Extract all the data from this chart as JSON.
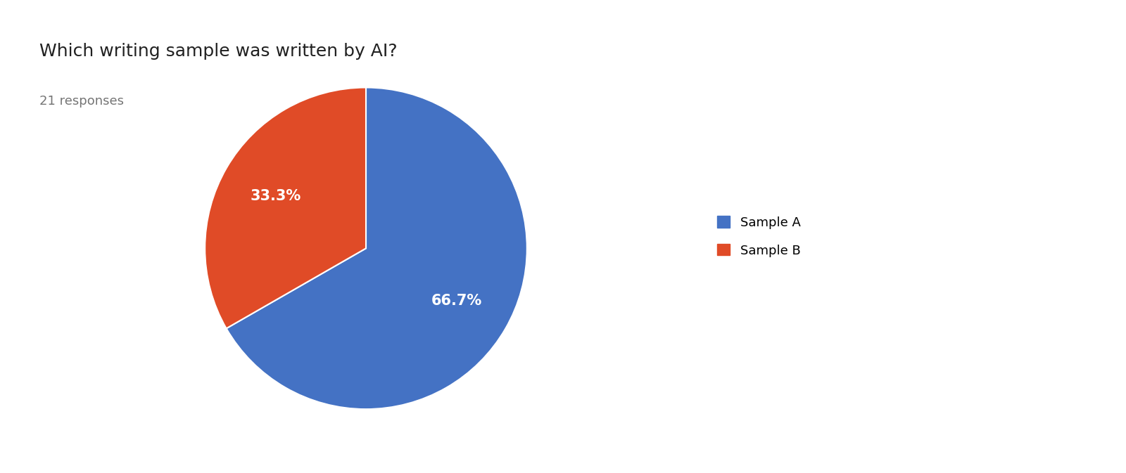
{
  "title": "Which writing sample was written by AI?",
  "subtitle": "21 responses",
  "labels": [
    "Sample A",
    "Sample B"
  ],
  "values": [
    66.7,
    33.3
  ],
  "colors": [
    "#4472C4",
    "#E04B27"
  ],
  "background_color": "#ffffff",
  "title_fontsize": 18,
  "subtitle_fontsize": 13,
  "legend_fontsize": 13,
  "autopct_fontsize": 15,
  "startangle": 90
}
